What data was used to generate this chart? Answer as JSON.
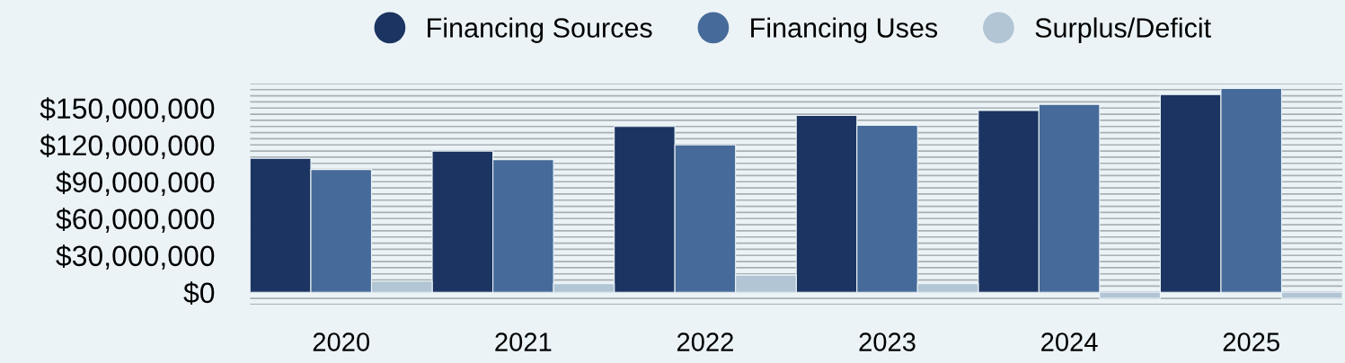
{
  "chart_data": {
    "type": "bar",
    "categories": [
      "2020",
      "2021",
      "2022",
      "2023",
      "2024",
      "2025"
    ],
    "series": [
      {
        "name": "Financing Sources",
        "color": "#1b3461",
        "values": [
          109000000,
          115000000,
          135000000,
          144000000,
          148000000,
          161000000
        ]
      },
      {
        "name": "Financing Uses",
        "color": "#466a99",
        "values": [
          100000000,
          108000000,
          120000000,
          136000000,
          153000000,
          166000000
        ]
      },
      {
        "name": "Surplus/Deficit",
        "color": "#b1c5d5",
        "values": [
          9000000,
          7000000,
          14000000,
          7000000,
          -5000000,
          -5000000
        ]
      }
    ],
    "ylim": [
      -10000000,
      170000000
    ],
    "yticks": [
      {
        "value": -10000000,
        "label": null
      },
      {
        "value": -5000000,
        "label": null
      },
      {
        "value": 0,
        "label": "$0"
      },
      {
        "value": 5000000,
        "label": null
      },
      {
        "value": 10000000,
        "label": null
      },
      {
        "value": 15000000,
        "label": null
      },
      {
        "value": 20000000,
        "label": null
      },
      {
        "value": 25000000,
        "label": null
      },
      {
        "value": 30000000,
        "label": "$30,000,000"
      },
      {
        "value": 35000000,
        "label": null
      },
      {
        "value": 40000000,
        "label": null
      },
      {
        "value": 45000000,
        "label": null
      },
      {
        "value": 50000000,
        "label": null
      },
      {
        "value": 55000000,
        "label": null
      },
      {
        "value": 60000000,
        "label": "$60,000,000"
      },
      {
        "value": 65000000,
        "label": null
      },
      {
        "value": 70000000,
        "label": null
      },
      {
        "value": 75000000,
        "label": null
      },
      {
        "value": 80000000,
        "label": null
      },
      {
        "value": 85000000,
        "label": null
      },
      {
        "value": 90000000,
        "label": "$90,000,000"
      },
      {
        "value": 95000000,
        "label": null
      },
      {
        "value": 100000000,
        "label": null
      },
      {
        "value": 105000000,
        "label": null
      },
      {
        "value": 110000000,
        "label": null
      },
      {
        "value": 115000000,
        "label": null
      },
      {
        "value": 120000000,
        "label": "$120,000,000"
      },
      {
        "value": 125000000,
        "label": null
      },
      {
        "value": 130000000,
        "label": null
      },
      {
        "value": 135000000,
        "label": null
      },
      {
        "value": 140000000,
        "label": null
      },
      {
        "value": 145000000,
        "label": null
      },
      {
        "value": 150000000,
        "label": "$150,000,000"
      },
      {
        "value": 155000000,
        "label": null
      },
      {
        "value": 160000000,
        "label": null
      },
      {
        "value": 165000000,
        "label": null
      },
      {
        "value": 170000000,
        "label": null
      }
    ],
    "grid": "y",
    "legend": "top"
  }
}
